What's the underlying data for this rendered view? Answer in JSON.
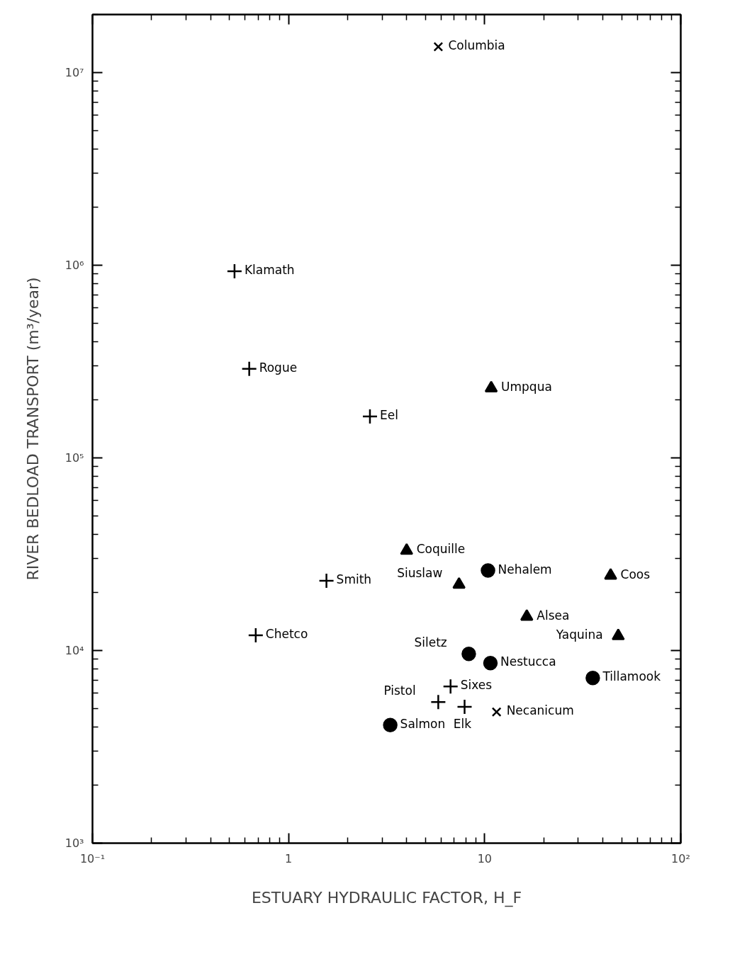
{
  "chart_data": {
    "type": "scatter",
    "xlabel": "ESTUARY HYDRAULIC FACTOR, H_F",
    "ylabel": "RIVER BEDLOAD TRANSPORT (m³/year)",
    "log": "xy",
    "grid": false,
    "xlim": [
      0.1,
      100
    ],
    "ylim": [
      1000,
      20000000
    ],
    "xticks": [
      {
        "value": 0.1,
        "label": "10⁻¹"
      },
      1,
      10,
      {
        "value": 100,
        "label": "10²"
      }
    ],
    "yticks": [
      {
        "value": 1000,
        "label": "10³"
      },
      {
        "value": 10000,
        "label": "10⁴"
      },
      {
        "value": 100000,
        "label": "10⁵"
      },
      {
        "value": 1000000,
        "label": "10⁶"
      },
      {
        "value": 10000000,
        "label": "10⁷"
      }
    ],
    "series": [
      {
        "marker": "cross",
        "color": "#000000",
        "x": [
          0.53,
          0.63,
          2.6,
          1.56,
          0.68,
          6.7,
          5.8,
          7.9
        ],
        "values": [
          930000,
          290000,
          164000,
          23000,
          12000,
          6500,
          5400,
          5100
        ]
      },
      {
        "marker": "x",
        "color": "#000000",
        "x": [
          5.8,
          11.5
        ],
        "values": [
          13600000,
          4800
        ]
      },
      {
        "marker": "triangle",
        "color": "#000000",
        "x": [
          10.8,
          4.0,
          7.4,
          43.9,
          16.4,
          48
        ],
        "values": [
          230000,
          33000,
          22000,
          24500,
          15000,
          11900
        ]
      },
      {
        "marker": "circle",
        "color": "#000000",
        "x": [
          10.4,
          8.3,
          10.7,
          35.6,
          3.3
        ],
        "values": [
          26000,
          9600,
          8600,
          7200,
          4100
        ]
      }
    ],
    "annotations": [
      {
        "text": "Klamath",
        "x": 0.53,
        "y": 930000
      },
      {
        "text": "Rogue",
        "x": 0.63,
        "y": 290000
      },
      {
        "text": "Eel",
        "x": 2.6,
        "y": 164000
      },
      {
        "text": "Smith",
        "x": 1.56,
        "y": 23000
      },
      {
        "text": "Chetco",
        "x": 0.68,
        "y": 12000
      },
      {
        "text": "Sixes",
        "x": 6.7,
        "y": 6500
      },
      {
        "text": "Pistol",
        "x": 5.8,
        "y": 5400
      },
      {
        "text": "Elk",
        "x": 7.9,
        "y": 5100
      },
      {
        "text": "Columbia",
        "x": 5.8,
        "y": 13600000
      },
      {
        "text": "Necanicum",
        "x": 11.5,
        "y": 4800
      },
      {
        "text": "Umpqua",
        "x": 10.8,
        "y": 230000
      },
      {
        "text": "Coquille",
        "x": 4.0,
        "y": 33000
      },
      {
        "text": "Siuslaw",
        "x": 7.4,
        "y": 22000
      },
      {
        "text": "Coos",
        "x": 43.9,
        "y": 24500
      },
      {
        "text": "Alsea",
        "x": 16.4,
        "y": 15000
      },
      {
        "text": "Yaquina",
        "x": 48,
        "y": 11900
      },
      {
        "text": "Nehalem",
        "x": 10.4,
        "y": 26000
      },
      {
        "text": "Siletz",
        "x": 8.3,
        "y": 9600
      },
      {
        "text": "Nestucca",
        "x": 10.7,
        "y": 8600
      },
      {
        "text": "Tillamook",
        "x": 35.6,
        "y": 7200
      },
      {
        "text": "Salmon",
        "x": 3.3,
        "y": 4100
      }
    ]
  }
}
